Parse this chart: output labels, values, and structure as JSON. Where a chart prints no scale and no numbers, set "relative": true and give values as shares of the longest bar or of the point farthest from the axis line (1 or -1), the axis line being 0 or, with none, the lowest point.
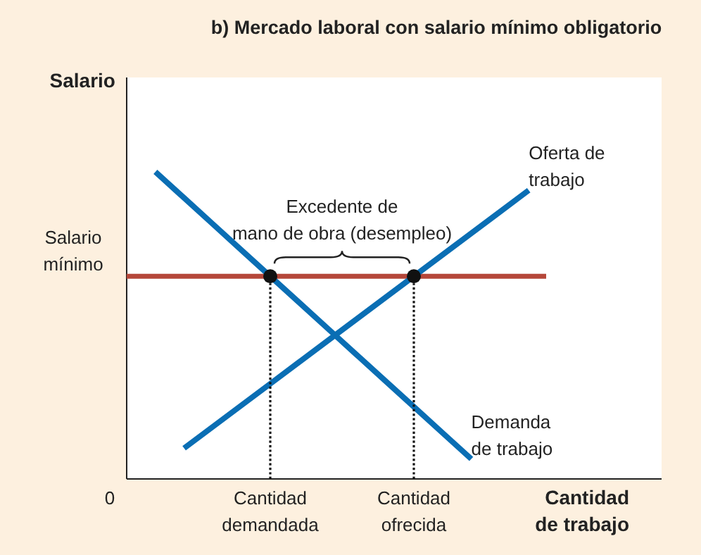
{
  "chart_data": {
    "type": "line",
    "relative": true,
    "title": "b) Mercado laboral con salario mínimo obligatorio",
    "xlabel": "Cantidad\nde trabajo",
    "ylabel": "Salario",
    "categories": [
      null,
      null,
      null,
      null,
      "Cantidad\ndemandada",
      null,
      null,
      null,
      null,
      "Cantidad\nofrecida",
      null,
      null,
      null,
      null,
      null
    ],
    "series": [
      {
        "name": "Demanda\nde trabajo",
        "color": "#0a6eb4",
        "values": [
          1,
          0.915,
          0.83,
          0.745,
          0.66,
          0.575,
          0.49,
          0.405,
          0.32,
          0.235,
          0.15,
          0.065,
          null,
          null,
          null
        ]
      },
      {
        "name": "Oferta de\ntrabajo",
        "color": "#0a6eb4",
        "values": [
          null,
          0.1,
          0.17,
          0.24,
          0.31,
          0.38,
          0.45,
          0.52,
          0.59,
          0.66,
          0.73,
          0.8,
          0.87,
          0.94,
          null
        ]
      },
      {
        "type": "scatter",
        "color": "#111111",
        "x": [
          "Cantidad\ndemandada",
          "Cantidad\nofrecida"
        ],
        "values": [
          0.66,
          0.66
        ]
      }
    ],
    "ref_lines": [
      {
        "axis": "y",
        "value": 0.66,
        "label": "Salario\nmínimo",
        "color": "#b5473a"
      }
    ],
    "annotations": [
      {
        "text": "Excedente de\nmano de obra (desempleo)",
        "y": 0.66
      },
      "0"
    ]
  }
}
